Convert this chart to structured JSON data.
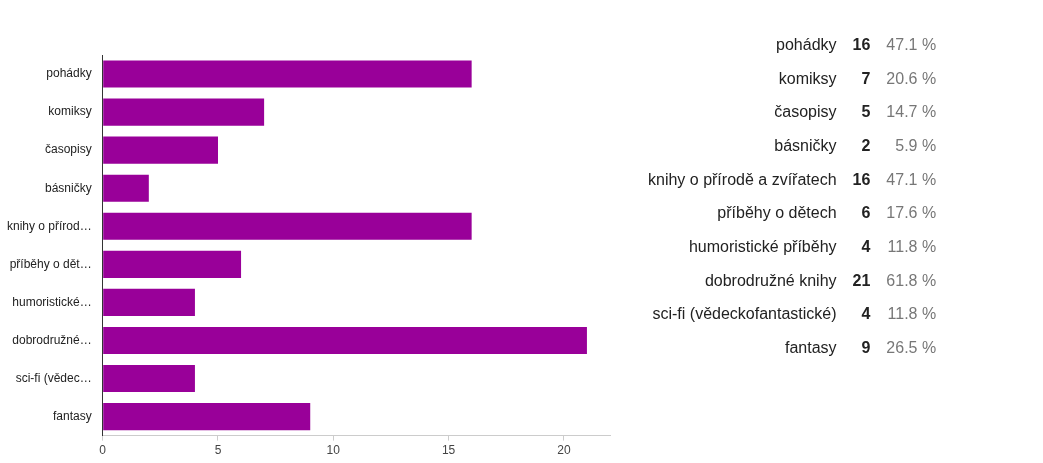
{
  "chart_data": [
    {
      "type": "bar",
      "orientation": "horizontal",
      "categories": [
        "pohádky",
        "komiksy",
        "časopisy",
        "básničky",
        "knihy o přírod…",
        "příběhy o dět…",
        "humoristické…",
        "dobrodružné…",
        "sci-fi (vědec…",
        "fantasy"
      ],
      "values": [
        16,
        7,
        5,
        2,
        16,
        6,
        4,
        21,
        4,
        9
      ],
      "color": "#990099",
      "xlim": [
        0,
        22
      ],
      "xticks": [
        0,
        5,
        10,
        15,
        20
      ]
    },
    {
      "type": "other",
      "categories": [
        "pohádky",
        "komiksy",
        "časopisy",
        "básničky",
        "knihy o přírodě a zvířatech",
        "příběhy o dětech",
        "humoristické příběhy",
        "dobrodružné knihy",
        "sci-fi (vědeckofantastické)",
        "fantasy"
      ],
      "values": [
        16,
        7,
        5,
        2,
        16,
        6,
        4,
        21,
        4,
        9
      ],
      "data_labels": true,
      "annotations": [
        "47.1 %",
        "20.6 %",
        "14.7 %",
        "5.9 %",
        "47.1 %",
        "17.6 %",
        "11.8 %",
        "61.8 %",
        "11.8 %",
        "26.5 %"
      ]
    }
  ]
}
